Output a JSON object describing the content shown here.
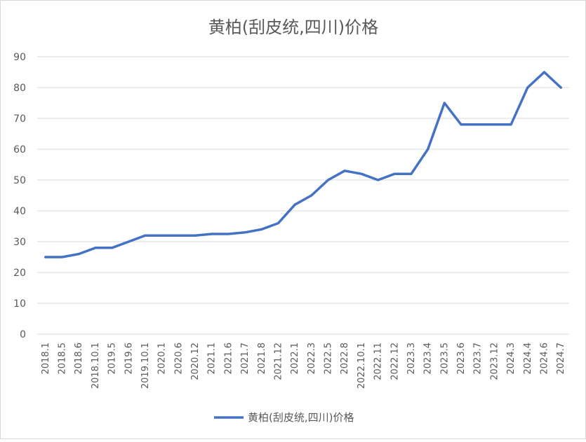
{
  "chart_data": {
    "type": "line",
    "title": "黄柏(刮皮统,四川)价格",
    "xlabel": "",
    "ylabel": "",
    "ylim": [
      0,
      90
    ],
    "yticks": [
      0,
      10,
      20,
      30,
      40,
      50,
      60,
      70,
      80,
      90
    ],
    "grid": "horizontal",
    "legend_position": "bottom",
    "categories": [
      "2018.1",
      "2018.5",
      "2018.6",
      "2018.10.1",
      "2019.5",
      "2019.6",
      "2019.10.1",
      "2020.1",
      "2020.6",
      "2020.12",
      "2021.1",
      "2021.6",
      "2021.7",
      "2021.8",
      "2021.12",
      "2022.1",
      "2022.3",
      "2022.5",
      "2022.8",
      "2022.10.1",
      "2022.11",
      "2022.12",
      "2023.3",
      "2023.4",
      "2023.5",
      "2023.6",
      "2023.7",
      "2023.12",
      "2024.3",
      "2024.4",
      "2024.6",
      "2024.7"
    ],
    "series": [
      {
        "name": "黄柏(刮皮统,四川)价格",
        "color": "#4472c4",
        "values": [
          25,
          25,
          26,
          28,
          28,
          30,
          32,
          32,
          32,
          32,
          32.5,
          32.5,
          33,
          34,
          36,
          42,
          45,
          50,
          53,
          52,
          50,
          52,
          52,
          60,
          75,
          68,
          68,
          68,
          68,
          80,
          85,
          80
        ]
      }
    ]
  }
}
